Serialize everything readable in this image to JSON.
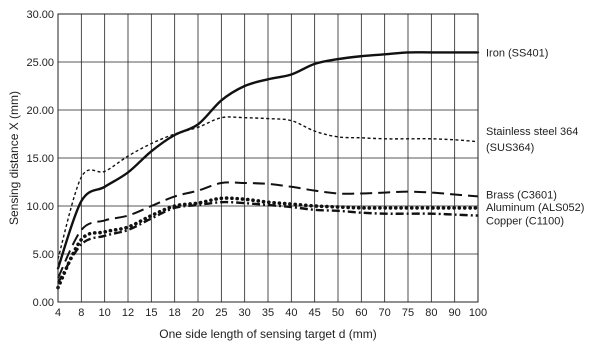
{
  "chart_data": {
    "type": "line",
    "title": "",
    "xlabel": "One side length of sensing target d (mm)",
    "ylabel": "Sensing distance X (mm)",
    "x_ticks": [
      4,
      8,
      10,
      12,
      15,
      18,
      20,
      25,
      30,
      35,
      40,
      45,
      50,
      60,
      70,
      75,
      80,
      90,
      100
    ],
    "x_tick_labels": [
      "4",
      "8",
      "10",
      "12",
      "15",
      "18",
      "20",
      "25",
      "30",
      "35",
      "40",
      "45",
      "50",
      "60",
      "70",
      "75",
      "80",
      "90",
      "100"
    ],
    "y_ticks": [
      0,
      5,
      10,
      15,
      20,
      25,
      30
    ],
    "y_tick_labels": [
      "0.00",
      "5.00",
      "10.00",
      "15.00",
      "20.00",
      "25.00",
      "30.00"
    ],
    "ylim": [
      0,
      30
    ],
    "grid": true,
    "x_scale": "categorical-spaced",
    "series": [
      {
        "name": "Iron (SS401)",
        "style": "solid",
        "x": [
          4,
          8,
          10,
          12,
          15,
          18,
          20,
          25,
          30,
          35,
          40,
          45,
          50,
          60,
          70,
          75,
          80,
          90,
          100
        ],
        "y": [
          3.5,
          10.5,
          12.0,
          13.5,
          15.7,
          17.4,
          18.5,
          21.0,
          22.5,
          23.2,
          23.7,
          24.8,
          25.3,
          25.6,
          25.8,
          26.0,
          26.0,
          26.0,
          26.0
        ]
      },
      {
        "name": "Stainless steel 364 (SUS364)",
        "label_lines": [
          "Stainless steel 364",
          "(SUS364)"
        ],
        "style": "short-dash",
        "x": [
          4,
          8,
          10,
          12,
          15,
          18,
          20,
          25,
          30,
          35,
          40,
          45,
          50,
          60,
          70,
          75,
          80,
          90,
          100
        ],
        "y": [
          4.5,
          13.0,
          13.6,
          15.2,
          16.5,
          17.5,
          18.2,
          19.2,
          19.2,
          19.1,
          18.9,
          17.8,
          17.2,
          17.1,
          17.0,
          17.0,
          17.0,
          16.9,
          16.7
        ]
      },
      {
        "name": "Brass (C3601)",
        "style": "long-dash",
        "x": [
          4,
          8,
          10,
          12,
          15,
          18,
          20,
          25,
          30,
          35,
          40,
          45,
          50,
          60,
          70,
          75,
          80,
          90,
          100
        ],
        "y": [
          2.5,
          7.5,
          8.5,
          9.0,
          10.0,
          11.0,
          11.6,
          12.4,
          12.4,
          12.3,
          12.0,
          11.6,
          11.3,
          11.3,
          11.4,
          11.5,
          11.4,
          11.2,
          11.0
        ]
      },
      {
        "name": "Aluminum (ALS052)",
        "style": "dotted",
        "x": [
          4,
          8,
          10,
          12,
          15,
          18,
          20,
          25,
          30,
          35,
          40,
          45,
          50,
          60,
          70,
          75,
          80,
          90,
          100
        ],
        "y": [
          1.5,
          6.5,
          7.3,
          7.8,
          9.0,
          10.0,
          10.3,
          10.8,
          10.7,
          10.4,
          10.2,
          10.0,
          9.9,
          9.8,
          9.8,
          9.8,
          9.8,
          9.8,
          9.8
        ]
      },
      {
        "name": "Copper (C1100)",
        "style": "dash-dot",
        "x": [
          4,
          8,
          10,
          12,
          15,
          18,
          20,
          25,
          30,
          35,
          40,
          45,
          50,
          60,
          70,
          75,
          80,
          90,
          100
        ],
        "y": [
          2.0,
          6.0,
          6.9,
          7.5,
          8.7,
          9.8,
          10.1,
          10.4,
          10.3,
          10.1,
          9.9,
          9.6,
          9.5,
          9.3,
          9.2,
          9.2,
          9.2,
          9.1,
          9.0
        ]
      }
    ]
  }
}
